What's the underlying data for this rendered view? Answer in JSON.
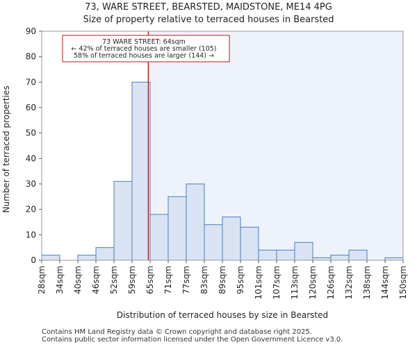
{
  "chart_data": {
    "type": "bar",
    "title_line1": "73, WARE STREET, BEARSTED, MAIDSTONE, ME14 4PG",
    "title_line2": "Size of property relative to terraced houses in Bearsted",
    "xlabel": "Distribution of terraced houses by size in Bearsted",
    "ylabel": "Number of terraced properties",
    "ylim": [
      0,
      90
    ],
    "yticks": [
      0,
      10,
      20,
      30,
      40,
      50,
      60,
      70,
      80,
      90
    ],
    "bin_labels": [
      "28sqm",
      "34sqm",
      "40sqm",
      "46sqm",
      "52sqm",
      "59sqm",
      "65sqm",
      "71sqm",
      "77sqm",
      "83sqm",
      "89sqm",
      "95sqm",
      "101sqm",
      "107sqm",
      "113sqm",
      "120sqm",
      "126sqm",
      "132sqm",
      "138sqm",
      "144sqm",
      "150sqm"
    ],
    "values": [
      2,
      0,
      2,
      5,
      31,
      70,
      18,
      25,
      30,
      14,
      17,
      13,
      4,
      4,
      7,
      1,
      2,
      4,
      0,
      1
    ],
    "property_marker_bin": 5.9,
    "annotation": {
      "line1": "73 WARE STREET: 64sqm",
      "line2": "← 42% of terraced houses are smaller (105)",
      "line3": "58% of terraced houses are larger (144) →"
    },
    "colors": {
      "bar_fill": "#dae3f3",
      "bar_stroke": "#4a7ebb",
      "marker": "#b41a1a",
      "shade": "#eef2fa"
    }
  },
  "footer": {
    "line1": "Contains HM Land Registry data © Crown copyright and database right 2025.",
    "line2": "Contains public sector information licensed under the Open Government Licence v3.0."
  }
}
